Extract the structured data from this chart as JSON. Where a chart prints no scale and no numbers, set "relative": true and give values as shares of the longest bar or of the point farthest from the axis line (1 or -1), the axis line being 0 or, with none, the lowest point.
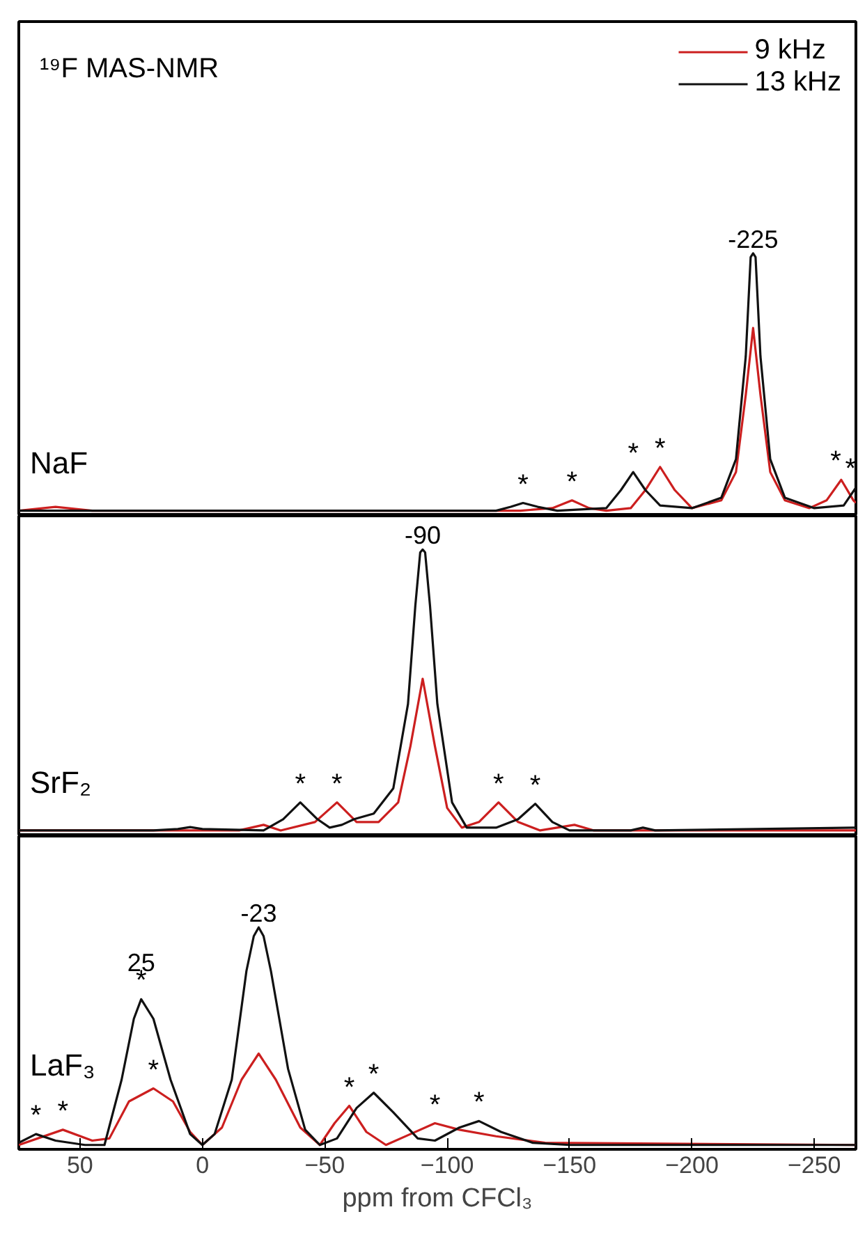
{
  "chart_data": [
    {
      "type": "line",
      "title": "NaF",
      "annotations": [
        "¹⁹F MAS-NMR",
        {
          "text": "-225",
          "x": -225,
          "y": 1
        },
        {
          "text": "*",
          "x": -131,
          "y": 0.03
        },
        {
          "text": "*",
          "x": -151,
          "y": 0.04
        },
        {
          "text": "*",
          "x": -176,
          "y": 0.15
        },
        {
          "text": "*",
          "x": -187,
          "y": 0.17
        },
        {
          "text": "*",
          "x": -261,
          "y": 0.12
        },
        {
          "text": "*",
          "x": -267,
          "y": 0.09
        }
      ],
      "xlim": [
        75,
        -267
      ],
      "xticks": [
        50,
        0,
        -50,
        -100,
        -150,
        -200,
        -250
      ],
      "relative": true,
      "tick_labels": false,
      "legend": "top right",
      "series": [
        {
          "name": "9 kHz",
          "color": "#cc1f1f",
          "x": [
            75,
            60,
            45,
            0,
            -130,
            -143,
            -151,
            -158,
            -165,
            -175,
            -181,
            -187,
            -193,
            -200,
            -212,
            -218,
            -222,
            -225,
            -228,
            -232,
            -238,
            -248,
            -255,
            -261,
            -266,
            -267
          ],
          "values": [
            0,
            0.015,
            0,
            0,
            0,
            0.01,
            0.04,
            0.01,
            0,
            0.01,
            0.08,
            0.17,
            0.08,
            0.01,
            0.04,
            0.15,
            0.45,
            0.71,
            0.45,
            0.15,
            0.04,
            0.01,
            0.04,
            0.12,
            0.04,
            0.03
          ]
        },
        {
          "name": "13 kHz",
          "color": "#111111",
          "x": [
            75,
            50,
            30,
            0,
            -100,
            -120,
            -126,
            -131,
            -137,
            -145,
            -165,
            -171,
            -176,
            -181,
            -187,
            -200,
            -212,
            -218,
            -222,
            -224,
            -225,
            -226,
            -228,
            -232,
            -238,
            -250,
            -262,
            -267
          ],
          "values": [
            0,
            0,
            0,
            0,
            0,
            0,
            0.015,
            0.03,
            0.015,
            0,
            0.01,
            0.08,
            0.15,
            0.08,
            0.02,
            0.01,
            0.05,
            0.2,
            0.6,
            0.985,
            1,
            0.985,
            0.6,
            0.2,
            0.05,
            0.01,
            0.02,
            0.09
          ]
        }
      ]
    },
    {
      "type": "line",
      "title": "SrF₂",
      "annotations": [
        {
          "text": "-90",
          "x": -90,
          "y": 1
        },
        {
          "text": "*",
          "x": -40,
          "y": 0.1
        },
        {
          "text": "*",
          "x": -55,
          "y": 0.1
        },
        {
          "text": "*",
          "x": -121,
          "y": 0.1
        },
        {
          "text": "*",
          "x": -136,
          "y": 0.095
        }
      ],
      "xlim": [
        75,
        -267
      ],
      "xticks": [
        50,
        0,
        -50,
        -100,
        -150,
        -200,
        -250
      ],
      "relative": true,
      "tick_labels": false,
      "series": [
        {
          "color": "#cc1f1f",
          "x": [
            75,
            -15,
            -25,
            -32,
            -46,
            -55,
            -63,
            -72,
            -80,
            -85,
            -90,
            -95,
            -100,
            -106,
            -113,
            -121,
            -129,
            -138,
            -145,
            -152,
            -160,
            -267
          ],
          "values": [
            0,
            0,
            0.02,
            0,
            0.03,
            0.1,
            0.03,
            0.03,
            0.1,
            0.3,
            0.54,
            0.3,
            0.08,
            0.01,
            0.03,
            0.1,
            0.03,
            0,
            0.01,
            0.02,
            0,
            0
          ]
        },
        {
          "color": "#111111",
          "x": [
            75,
            20,
            10,
            5,
            0,
            -25,
            -33,
            -40,
            -47,
            -52,
            -57,
            -62,
            -70,
            -78,
            -84,
            -87,
            -89,
            -90,
            -91,
            -93,
            -96,
            -102,
            -108,
            -120,
            -129,
            -136,
            -143,
            -150,
            -175,
            -180,
            -185,
            -267
          ],
          "values": [
            0,
            0,
            0.005,
            0.012,
            0.005,
            0,
            0.04,
            0.1,
            0.04,
            0.01,
            0.02,
            0.04,
            0.06,
            0.15,
            0.45,
            0.8,
            0.99,
            1,
            0.99,
            0.8,
            0.45,
            0.1,
            0.01,
            0.01,
            0.04,
            0.095,
            0.03,
            0,
            0,
            0.01,
            0,
            0.01
          ]
        }
      ]
    },
    {
      "type": "line",
      "title": "LaF₃",
      "xlabel": "ppm from CFCl₃",
      "annotations": [
        {
          "text": "-23",
          "x": -23,
          "y": 1
        },
        {
          "text": "*",
          "x": 25,
          "y": 0.67
        },
        {
          "text": "25",
          "x": 25,
          "y": 0.67
        },
        {
          "text": "*",
          "x": 20,
          "y": 0.26
        },
        {
          "text": "*",
          "x": 68,
          "y": 0.05
        },
        {
          "text": "*",
          "x": 57,
          "y": 0.07
        },
        {
          "text": "*",
          "x": -60,
          "y": 0.18
        },
        {
          "text": "*",
          "x": -70,
          "y": 0.24
        },
        {
          "text": "*",
          "x": -95,
          "y": 0.1
        },
        {
          "text": "*",
          "x": -113,
          "y": 0.11
        }
      ],
      "xlim": [
        75,
        -267
      ],
      "xticks": [
        50,
        0,
        -50,
        -100,
        -150,
        -200,
        -250
      ],
      "relative": true,
      "tick_labels": "x",
      "series": [
        {
          "color": "#cc1f1f",
          "x": [
            75,
            57,
            45,
            38,
            30,
            20,
            12,
            5,
            0,
            -8,
            -16,
            -23,
            -30,
            -40,
            -48,
            -54,
            -60,
            -67,
            -75,
            -85,
            -95,
            -105,
            -120,
            -140,
            -267
          ],
          "values": [
            0,
            0.07,
            0.02,
            0.03,
            0.2,
            0.26,
            0.2,
            0.06,
            0,
            0.08,
            0.3,
            0.42,
            0.3,
            0.08,
            0,
            0.1,
            0.18,
            0.06,
            0,
            0.05,
            0.1,
            0.07,
            0.04,
            0.01,
            0
          ]
        },
        {
          "color": "#111111",
          "x": [
            75,
            68,
            60,
            48,
            40,
            33,
            28,
            25,
            20,
            13,
            5,
            0,
            -5,
            -12,
            -18,
            -21,
            -23,
            -25,
            -28,
            -35,
            -42,
            -48,
            -55,
            -63,
            -70,
            -78,
            -88,
            -95,
            -105,
            -113,
            -122,
            -135,
            -150,
            -267
          ],
          "values": [
            0.01,
            0.05,
            0.02,
            0,
            0,
            0.3,
            0.58,
            0.67,
            0.58,
            0.3,
            0.05,
            0,
            0.05,
            0.3,
            0.8,
            0.96,
            1,
            0.96,
            0.8,
            0.35,
            0.07,
            0,
            0.03,
            0.17,
            0.24,
            0.15,
            0.03,
            0.02,
            0.08,
            0.11,
            0.06,
            0.01,
            0,
            0
          ]
        }
      ]
    }
  ]
}
